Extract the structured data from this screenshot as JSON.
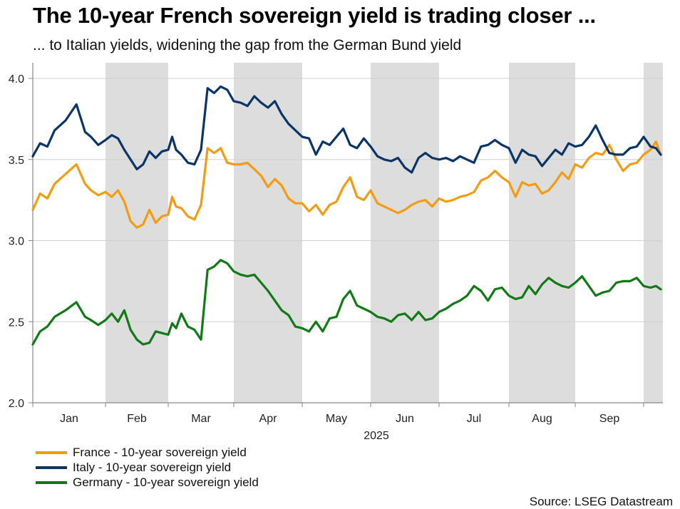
{
  "header": {
    "title": "The 10-year French sovereign yield is trading closer ...",
    "subtitle": "... to Italian yields, widening the gap from the German Bund yield"
  },
  "footer": {
    "source": "Source: LSEG Datastream"
  },
  "chart_data": {
    "type": "line",
    "title": "The 10-year French sovereign yield is trading closer ...",
    "subtitle": "... to Italian yields, widening the gap from the German Bund yield",
    "xlabel": "2025",
    "ylabel": "",
    "ylim": [
      2.0,
      4.0
    ],
    "yticks": [
      2.0,
      2.5,
      3.0,
      3.5,
      4.0
    ],
    "ytick_labels": [
      "2.0",
      "2.5",
      "3.0",
      "3.5",
      "4.0"
    ],
    "x_unit": "month index (0 = 1 Jan 2025, 9 = 1 Oct 2025)",
    "xlim": [
      0,
      9.3
    ],
    "x_month_labels": [
      "Jan",
      "Feb",
      "Mar",
      "Apr",
      "May",
      "Jun",
      "Jul",
      "Aug",
      "Sep"
    ],
    "x_year_label": "2025",
    "shaded_months": [
      1,
      3,
      5,
      7,
      9
    ],
    "grid": "horizontal",
    "legend_position": "bottom-left",
    "series": [
      {
        "name": "France - 10-year sovereign yield",
        "color": "#F39C12",
        "x": [
          0.0,
          0.1,
          0.2,
          0.3,
          0.45,
          0.6,
          0.72,
          0.8,
          0.9,
          1.0,
          1.1,
          1.2,
          1.3,
          1.4,
          1.5,
          1.6,
          1.7,
          1.8,
          1.9,
          2.0,
          2.06,
          2.12,
          2.2,
          2.3,
          2.4,
          2.5,
          2.6,
          2.7,
          2.8,
          2.9,
          3.0,
          3.1,
          3.2,
          3.3,
          3.4,
          3.5,
          3.6,
          3.7,
          3.8,
          3.9,
          4.0,
          4.1,
          4.2,
          4.3,
          4.4,
          4.5,
          4.6,
          4.7,
          4.8,
          4.9,
          5.0,
          5.1,
          5.2,
          5.3,
          5.4,
          5.5,
          5.6,
          5.7,
          5.8,
          5.9,
          6.0,
          6.1,
          6.2,
          6.3,
          6.4,
          6.5,
          6.6,
          6.7,
          6.8,
          6.9,
          7.0,
          7.1,
          7.2,
          7.3,
          7.4,
          7.5,
          7.6,
          7.7,
          7.8,
          7.9,
          8.0,
          8.1,
          8.2,
          8.3,
          8.4,
          8.5,
          8.6,
          8.7,
          8.8,
          8.9,
          9.0,
          9.1,
          9.18,
          9.25
        ],
        "values": [
          3.19,
          3.29,
          3.26,
          3.35,
          3.41,
          3.47,
          3.35,
          3.31,
          3.28,
          3.3,
          3.27,
          3.31,
          3.24,
          3.12,
          3.08,
          3.1,
          3.19,
          3.11,
          3.15,
          3.16,
          3.27,
          3.21,
          3.2,
          3.15,
          3.13,
          3.22,
          3.57,
          3.54,
          3.57,
          3.48,
          3.47,
          3.47,
          3.48,
          3.44,
          3.4,
          3.33,
          3.38,
          3.34,
          3.26,
          3.23,
          3.23,
          3.18,
          3.22,
          3.16,
          3.22,
          3.24,
          3.33,
          3.39,
          3.27,
          3.25,
          3.31,
          3.23,
          3.21,
          3.19,
          3.17,
          3.19,
          3.22,
          3.24,
          3.25,
          3.21,
          3.26,
          3.24,
          3.25,
          3.27,
          3.28,
          3.3,
          3.37,
          3.39,
          3.43,
          3.39,
          3.36,
          3.27,
          3.36,
          3.34,
          3.35,
          3.29,
          3.31,
          3.36,
          3.42,
          3.38,
          3.47,
          3.45,
          3.51,
          3.54,
          3.53,
          3.59,
          3.5,
          3.43,
          3.47,
          3.48,
          3.53,
          3.56,
          3.61,
          3.53
        ]
      },
      {
        "name": "Italy - 10-year sovereign yield",
        "color": "#0B3566",
        "x": [
          0.0,
          0.1,
          0.2,
          0.3,
          0.45,
          0.6,
          0.72,
          0.8,
          0.9,
          1.0,
          1.1,
          1.2,
          1.3,
          1.4,
          1.5,
          1.6,
          1.7,
          1.8,
          1.9,
          2.0,
          2.06,
          2.12,
          2.2,
          2.3,
          2.4,
          2.5,
          2.6,
          2.7,
          2.8,
          2.9,
          3.0,
          3.1,
          3.2,
          3.3,
          3.4,
          3.5,
          3.6,
          3.7,
          3.8,
          3.9,
          4.0,
          4.1,
          4.2,
          4.3,
          4.4,
          4.5,
          4.6,
          4.7,
          4.8,
          4.9,
          5.0,
          5.1,
          5.2,
          5.3,
          5.4,
          5.5,
          5.6,
          5.7,
          5.8,
          5.9,
          6.0,
          6.1,
          6.2,
          6.3,
          6.4,
          6.5,
          6.6,
          6.7,
          6.8,
          6.9,
          7.0,
          7.1,
          7.2,
          7.3,
          7.4,
          7.5,
          7.6,
          7.7,
          7.8,
          7.9,
          8.0,
          8.1,
          8.2,
          8.3,
          8.4,
          8.5,
          8.6,
          8.7,
          8.8,
          8.9,
          9.0,
          9.1,
          9.18,
          9.25
        ],
        "values": [
          3.52,
          3.6,
          3.58,
          3.68,
          3.74,
          3.84,
          3.67,
          3.64,
          3.59,
          3.62,
          3.65,
          3.63,
          3.56,
          3.5,
          3.44,
          3.47,
          3.55,
          3.51,
          3.55,
          3.56,
          3.64,
          3.56,
          3.53,
          3.48,
          3.47,
          3.56,
          3.94,
          3.91,
          3.95,
          3.93,
          3.86,
          3.85,
          3.83,
          3.89,
          3.85,
          3.82,
          3.86,
          3.78,
          3.72,
          3.68,
          3.64,
          3.63,
          3.53,
          3.61,
          3.59,
          3.64,
          3.69,
          3.59,
          3.57,
          3.63,
          3.58,
          3.52,
          3.5,
          3.49,
          3.51,
          3.45,
          3.42,
          3.51,
          3.54,
          3.51,
          3.5,
          3.51,
          3.49,
          3.52,
          3.5,
          3.48,
          3.58,
          3.59,
          3.62,
          3.59,
          3.57,
          3.48,
          3.56,
          3.53,
          3.52,
          3.46,
          3.51,
          3.56,
          3.53,
          3.6,
          3.58,
          3.59,
          3.64,
          3.71,
          3.62,
          3.54,
          3.53,
          3.53,
          3.57,
          3.58,
          3.64,
          3.58,
          3.57,
          3.53
        ]
      },
      {
        "name": "Germany - 10-year sovereign yield",
        "color": "#117A17",
        "x": [
          0.0,
          0.1,
          0.2,
          0.3,
          0.45,
          0.6,
          0.72,
          0.8,
          0.9,
          1.0,
          1.1,
          1.2,
          1.3,
          1.4,
          1.5,
          1.6,
          1.7,
          1.8,
          1.9,
          2.0,
          2.06,
          2.12,
          2.2,
          2.3,
          2.4,
          2.5,
          2.6,
          2.7,
          2.8,
          2.9,
          3.0,
          3.1,
          3.2,
          3.3,
          3.4,
          3.5,
          3.6,
          3.7,
          3.8,
          3.9,
          4.0,
          4.1,
          4.2,
          4.3,
          4.4,
          4.5,
          4.6,
          4.7,
          4.8,
          4.9,
          5.0,
          5.1,
          5.2,
          5.3,
          5.4,
          5.5,
          5.6,
          5.7,
          5.8,
          5.9,
          6.0,
          6.1,
          6.2,
          6.3,
          6.4,
          6.5,
          6.6,
          6.7,
          6.8,
          6.9,
          7.0,
          7.1,
          7.2,
          7.3,
          7.4,
          7.5,
          7.6,
          7.7,
          7.8,
          7.9,
          8.0,
          8.1,
          8.2,
          8.3,
          8.4,
          8.5,
          8.6,
          8.7,
          8.8,
          8.9,
          9.0,
          9.1,
          9.18,
          9.25
        ],
        "values": [
          2.36,
          2.44,
          2.47,
          2.53,
          2.57,
          2.62,
          2.53,
          2.51,
          2.48,
          2.51,
          2.55,
          2.5,
          2.57,
          2.45,
          2.39,
          2.36,
          2.37,
          2.44,
          2.43,
          2.42,
          2.49,
          2.46,
          2.55,
          2.47,
          2.45,
          2.39,
          2.82,
          2.84,
          2.88,
          2.86,
          2.81,
          2.79,
          2.78,
          2.79,
          2.74,
          2.69,
          2.63,
          2.57,
          2.54,
          2.47,
          2.46,
          2.44,
          2.5,
          2.44,
          2.52,
          2.53,
          2.64,
          2.69,
          2.6,
          2.58,
          2.56,
          2.53,
          2.52,
          2.5,
          2.54,
          2.55,
          2.51,
          2.56,
          2.51,
          2.52,
          2.56,
          2.58,
          2.61,
          2.63,
          2.66,
          2.72,
          2.69,
          2.63,
          2.7,
          2.71,
          2.66,
          2.64,
          2.65,
          2.72,
          2.67,
          2.73,
          2.77,
          2.74,
          2.72,
          2.71,
          2.74,
          2.78,
          2.72,
          2.66,
          2.68,
          2.69,
          2.74,
          2.75,
          2.75,
          2.77,
          2.72,
          2.71,
          2.72,
          2.7
        ]
      }
    ]
  }
}
